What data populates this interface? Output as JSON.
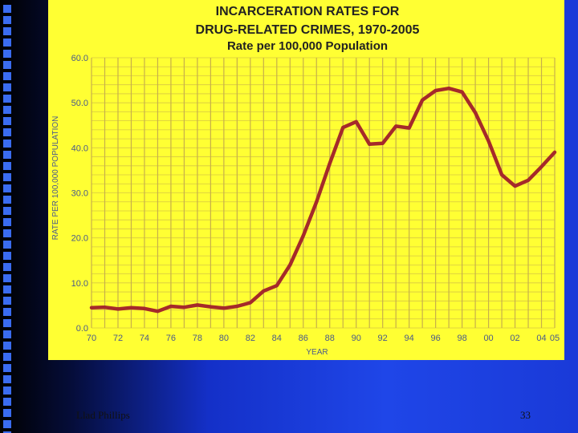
{
  "colors": {
    "chart_background": "#ffff33",
    "grid_line": "#c7b04a",
    "data_line": "#a52a2a",
    "tick_text": "#4a5a8a",
    "title_text": "#222222",
    "bullet": "#3a6cf0"
  },
  "footer": {
    "author": "Llad Phillips",
    "page_number": "33"
  },
  "chart_data": {
    "type": "line",
    "title_lines": [
      "INCARCERATION RATES FOR",
      "DRUG-RELATED CRIMES, 1970-2005",
      "Rate per 100,000 Population"
    ],
    "xlabel": "YEAR",
    "ylabel": "RATE PER 100,000 POPULATION",
    "xlim": [
      1970,
      2005
    ],
    "ylim": [
      0,
      60
    ],
    "x_ticks": [
      1970,
      1972,
      1974,
      1976,
      1978,
      1980,
      1982,
      1984,
      1986,
      1988,
      1990,
      1992,
      1994,
      1996,
      1998,
      2000,
      2002,
      2004,
      2005
    ],
    "x_tick_labels": [
      "70",
      "72",
      "74",
      "76",
      "78",
      "80",
      "82",
      "84",
      "86",
      "88",
      "90",
      "92",
      "94",
      "96",
      "98",
      "00",
      "02",
      "04",
      "05"
    ],
    "y_ticks": [
      0,
      10,
      20,
      30,
      40,
      50,
      60
    ],
    "y_tick_labels": [
      "0.0",
      "10.0",
      "20.0",
      "30.0",
      "40.0",
      "50.0",
      "60.0"
    ],
    "grid": true,
    "series": [
      {
        "x": [
          1970,
          1971,
          1972,
          1973,
          1974,
          1975,
          1976,
          1977,
          1978,
          1979,
          1980,
          1981,
          1982,
          1983,
          1984,
          1985,
          1986,
          1987,
          1988,
          1989,
          1990,
          1991,
          1992,
          1993,
          1994,
          1995,
          1996,
          1997,
          1998,
          1999,
          2000,
          2001,
          2002,
          2003,
          2004,
          2005
        ],
        "y": [
          4.5,
          4.6,
          4.2,
          4.5,
          4.3,
          3.7,
          4.8,
          4.6,
          5.1,
          4.7,
          4.4,
          4.8,
          5.6,
          8.2,
          9.4,
          14.0,
          20.5,
          28.0,
          36.5,
          44.5,
          45.8,
          40.8,
          41.0,
          44.8,
          44.4,
          50.6,
          52.7,
          53.2,
          52.4,
          47.8,
          41.5,
          34.0,
          31.5,
          32.8,
          35.8,
          39.0
        ]
      }
    ]
  }
}
